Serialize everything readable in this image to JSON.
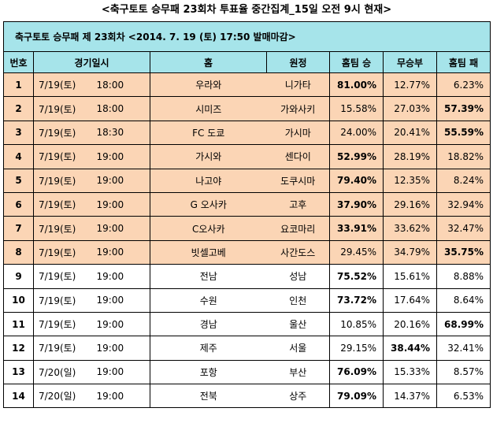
{
  "page_title": "<축구토토 승무패 23회차 투표율 중간집계_15일 오전 9시 현재>",
  "banner": "축구토토 승무패 제 23회차 <2014. 7. 19 (토) 17:50 발매마감>",
  "headers": {
    "no": "번호",
    "datetime": "경기일시",
    "home": "홈",
    "away": "원정",
    "home_win": "홈팀 승",
    "draw": "무승부",
    "home_loss": "홈팀 패"
  },
  "rows": [
    {
      "no": "1",
      "date": "7/19(토)",
      "time": "18:00",
      "home": "우라와",
      "away": "니가타",
      "win": "81.00%",
      "draw": "12.77%",
      "loss": "6.23%",
      "bold": "win",
      "highlight": true
    },
    {
      "no": "2",
      "date": "7/19(토)",
      "time": "18:00",
      "home": "시미즈",
      "away": "가와사키",
      "win": "15.58%",
      "draw": "27.03%",
      "loss": "57.39%",
      "bold": "loss",
      "highlight": true
    },
    {
      "no": "3",
      "date": "7/19(토)",
      "time": "18:30",
      "home": "FC 도쿄",
      "away": "가시마",
      "win": "24.00%",
      "draw": "20.41%",
      "loss": "55.59%",
      "bold": "loss",
      "highlight": true
    },
    {
      "no": "4",
      "date": "7/19(토)",
      "time": "19:00",
      "home": "가시와",
      "away": "센다이",
      "win": "52.99%",
      "draw": "28.19%",
      "loss": "18.82%",
      "bold": "win",
      "highlight": true
    },
    {
      "no": "5",
      "date": "7/19(토)",
      "time": "19:00",
      "home": "나고야",
      "away": "도쿠시마",
      "win": "79.40%",
      "draw": "12.35%",
      "loss": "8.24%",
      "bold": "win",
      "highlight": true
    },
    {
      "no": "6",
      "date": "7/19(토)",
      "time": "19:00",
      "home": "G 오사카",
      "away": "고후",
      "win": "37.90%",
      "draw": "29.16%",
      "loss": "32.94%",
      "bold": "win",
      "highlight": true
    },
    {
      "no": "7",
      "date": "7/19(토)",
      "time": "19:00",
      "home": "C오사카",
      "away": "요코마리",
      "win": "33.91%",
      "draw": "33.62%",
      "loss": "32.47%",
      "bold": "win",
      "highlight": true
    },
    {
      "no": "8",
      "date": "7/19(토)",
      "time": "19:00",
      "home": "빗셀고베",
      "away": "사간도스",
      "win": "29.45%",
      "draw": "34.79%",
      "loss": "35.75%",
      "bold": "loss",
      "highlight": true
    },
    {
      "no": "9",
      "date": "7/19(토)",
      "time": "19:00",
      "home": "전남",
      "away": "성남",
      "win": "75.52%",
      "draw": "15.61%",
      "loss": "8.88%",
      "bold": "win",
      "highlight": false
    },
    {
      "no": "10",
      "date": "7/19(토)",
      "time": "19:00",
      "home": "수원",
      "away": "인천",
      "win": "73.72%",
      "draw": "17.64%",
      "loss": "8.64%",
      "bold": "win",
      "highlight": false
    },
    {
      "no": "11",
      "date": "7/19(토)",
      "time": "19:00",
      "home": "경남",
      "away": "울산",
      "win": "10.85%",
      "draw": "20.16%",
      "loss": "68.99%",
      "bold": "loss",
      "highlight": false
    },
    {
      "no": "12",
      "date": "7/19(토)",
      "time": "19:00",
      "home": "제주",
      "away": "서울",
      "win": "29.15%",
      "draw": "38.44%",
      "loss": "32.41%",
      "bold": "draw",
      "highlight": false
    },
    {
      "no": "13",
      "date": "7/20(일)",
      "time": "19:00",
      "home": "포항",
      "away": "부산",
      "win": "76.09%",
      "draw": "15.33%",
      "loss": "8.57%",
      "bold": "win",
      "highlight": false
    },
    {
      "no": "14",
      "date": "7/20(일)",
      "time": "19:00",
      "home": "전북",
      "away": "상주",
      "win": "79.09%",
      "draw": "14.37%",
      "loss": "6.53%",
      "bold": "win",
      "highlight": false
    }
  ],
  "colors": {
    "header_bg": "#a6e4ea",
    "highlight_row_bg": "#fbd5b5",
    "border": "#000000"
  }
}
